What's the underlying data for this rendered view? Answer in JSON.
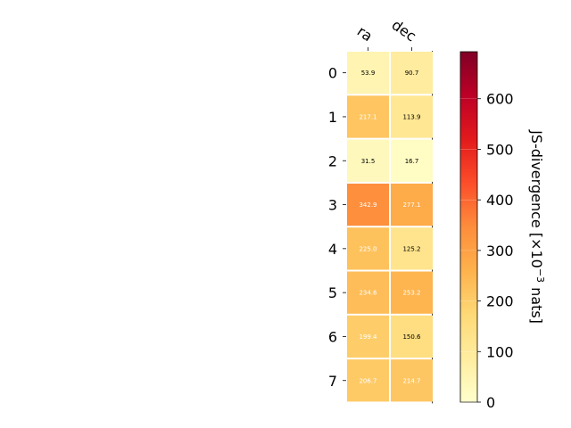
{
  "chart_data": {
    "type": "heatmap",
    "columns": [
      "ra",
      "dec"
    ],
    "rows": [
      "0",
      "1",
      "2",
      "3",
      "4",
      "5",
      "6",
      "7"
    ],
    "values": [
      [
        53.9,
        90.7
      ],
      [
        217.1,
        113.9
      ],
      [
        31.5,
        16.7
      ],
      [
        342.9,
        277.1
      ],
      [
        225.0,
        125.2
      ],
      [
        234.6,
        253.2
      ],
      [
        199.4,
        150.6
      ],
      [
        206.7,
        214.7
      ]
    ],
    "value_labels": [
      [
        "53.9",
        "90.7"
      ],
      [
        "217.1",
        "113.9"
      ],
      [
        "31.5",
        "16.7"
      ],
      [
        "342.9",
        "277.1"
      ],
      [
        "225.0",
        "125.2"
      ],
      [
        "234.6",
        "253.2"
      ],
      [
        "199.4",
        "150.6"
      ],
      [
        "206.7",
        "214.7"
      ]
    ],
    "colorbar": {
      "label_main": "JS-divergence [×10",
      "label_exp": "−3",
      "label_unit": " nats]",
      "range": [
        0,
        693
      ],
      "ticks": [
        0,
        100,
        200,
        300,
        400,
        500,
        600
      ],
      "tick_labels": [
        "0",
        "100",
        "200",
        "300",
        "400",
        "500",
        "600"
      ],
      "colormap": "YlOrRd",
      "stops": [
        "#ffffcc",
        "#ffeda0",
        "#fed976",
        "#feb24c",
        "#fd8d3c",
        "#fc4e2a",
        "#e31a1c",
        "#bd0026",
        "#800026"
      ]
    },
    "label_dark_text_color": "#000000",
    "label_light_text_color": "#ffffff",
    "label_light_threshold": 190,
    "legend": "right"
  }
}
